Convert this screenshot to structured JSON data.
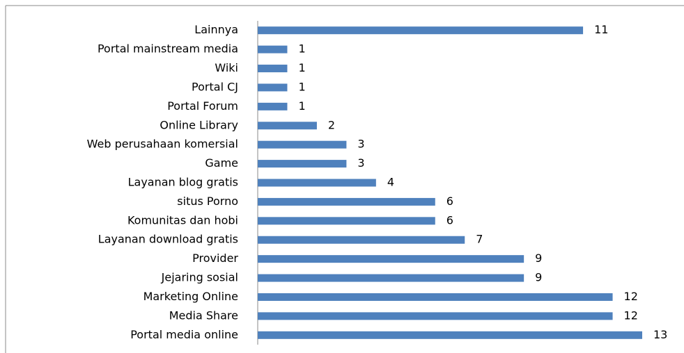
{
  "chart_data": {
    "type": "bar",
    "orientation": "horizontal",
    "categories": [
      "Lainnya",
      "Portal mainstream media",
      "Wiki",
      "Portal CJ",
      "Portal Forum",
      "Online Library",
      "Web perusahaan komersial",
      "Game",
      "Layanan blog gratis",
      "situs Porno",
      "Komunitas dan hobi",
      "Layanan download gratis",
      "Provider",
      "Jejaring sosial",
      "Marketing Online",
      "Media Share",
      "Portal media online"
    ],
    "values": [
      11,
      1,
      1,
      1,
      1,
      2,
      3,
      3,
      4,
      6,
      6,
      7,
      9,
      9,
      12,
      12,
      13
    ],
    "color": "#4f81bd"
  }
}
